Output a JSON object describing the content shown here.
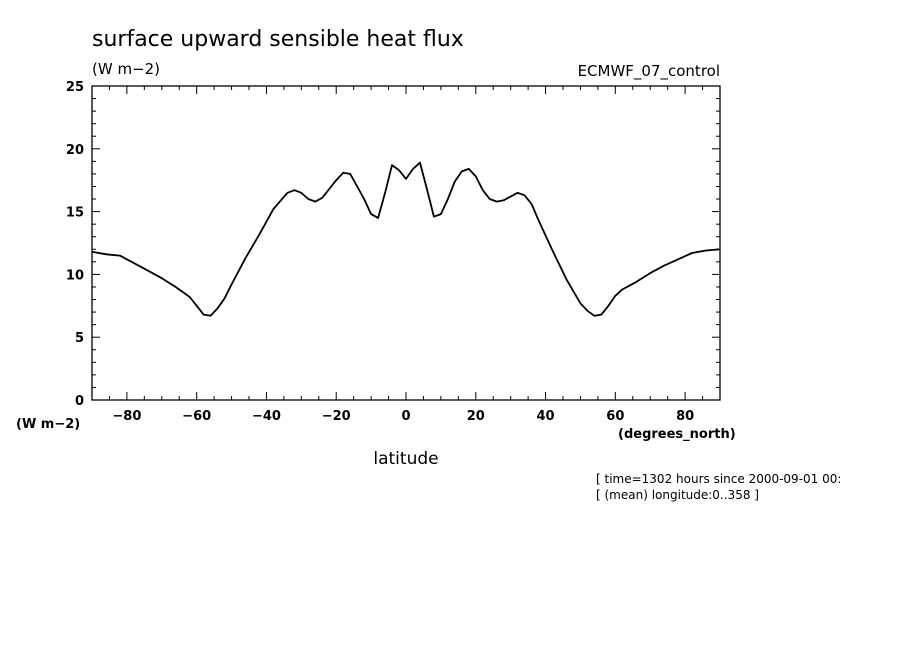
{
  "chart_data": {
    "type": "line",
    "title": "surface upward sensible heat flux",
    "units": "(W m−2)",
    "run_label": "ECMWF_07_control",
    "y_unit_label": "(W m−2)",
    "xlabel": "latitude",
    "x_unit_label": "(degrees_north)",
    "info_lines": [
      "[ time=1302 hours since 2000-09-01 00:",
      "[ (mean) longitude:0..358 ]"
    ],
    "xlim": [
      -90,
      90
    ],
    "ylim": [
      0,
      25
    ],
    "x_ticks": [
      -80,
      -60,
      -40,
      -20,
      0,
      20,
      40,
      60,
      80
    ],
    "x_tick_labels": [
      "−80",
      "−60",
      "−40",
      "−20",
      "0",
      "20",
      "40",
      "60",
      "80"
    ],
    "y_ticks": [
      0,
      5,
      10,
      15,
      20,
      25
    ],
    "y_tick_labels": [
      "0",
      "5",
      "10",
      "15",
      "20",
      "25"
    ],
    "grid": false,
    "series": [
      {
        "x": [
          -90,
          -86,
          -82,
          -78,
          -74,
          -70,
          -66,
          -62,
          -60,
          -58,
          -56,
          -54,
          -52,
          -50,
          -46,
          -42,
          -38,
          -34,
          -32,
          -30,
          -28,
          -26,
          -24,
          -22,
          -20,
          -18,
          -16,
          -14,
          -12,
          -10,
          -8,
          -6,
          -4,
          -2,
          0,
          2,
          4,
          6,
          8,
          10,
          12,
          14,
          16,
          18,
          20,
          22,
          24,
          26,
          28,
          30,
          32,
          34,
          36,
          38,
          42,
          46,
          50,
          52,
          54,
          56,
          58,
          60,
          62,
          64,
          66,
          70,
          74,
          78,
          82,
          86,
          90
        ],
        "y": [
          11.8,
          11.6,
          11.5,
          10.9,
          10.3,
          9.7,
          9.0,
          8.2,
          7.5,
          6.8,
          6.7,
          7.3,
          8.1,
          9.2,
          11.3,
          13.2,
          15.2,
          16.5,
          16.7,
          16.5,
          16.0,
          15.8,
          16.1,
          16.8,
          17.5,
          18.1,
          18.0,
          17.0,
          16.0,
          14.8,
          14.5,
          16.5,
          18.7,
          18.3,
          17.6,
          18.4,
          18.9,
          16.8,
          14.6,
          14.8,
          16.0,
          17.4,
          18.2,
          18.4,
          17.8,
          16.7,
          16.0,
          15.8,
          15.9,
          16.2,
          16.5,
          16.3,
          15.6,
          14.3,
          11.9,
          9.6,
          7.7,
          7.1,
          6.7,
          6.8,
          7.5,
          8.3,
          8.8,
          9.1,
          9.4,
          10.1,
          10.7,
          11.2,
          11.7,
          11.9,
          12.0
        ]
      }
    ]
  }
}
